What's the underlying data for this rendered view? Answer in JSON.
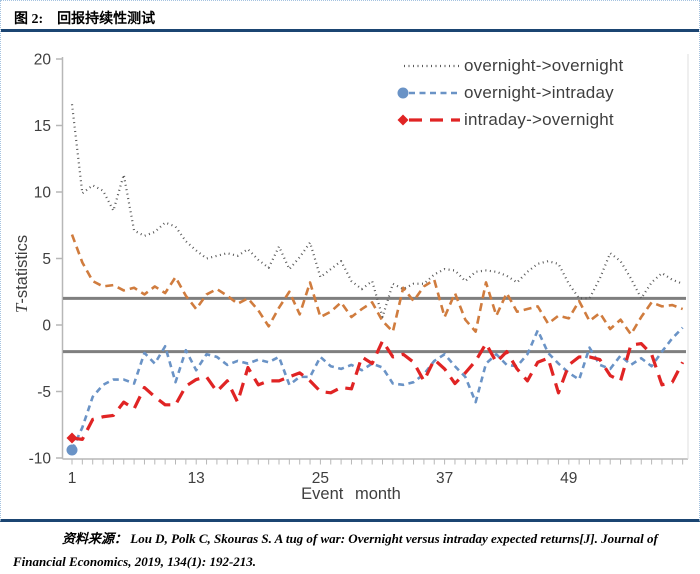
{
  "figure": {
    "tag_label": "图 2:",
    "title": "回报持续性测试"
  },
  "source_note": {
    "label": "资料来源：",
    "text": "Lou D, Polk C, Skouras S. A tug of war: Overnight versus intraday expected returns[J]. Journal of Financial Economics, 2019, 134(1): 192-213."
  },
  "chart_data": {
    "type": "line",
    "title": "",
    "xlabel": "Event month",
    "ylabel": "T-statistics",
    "ylabel_parts": {
      "italic": "T",
      "rest": "-statistics"
    },
    "xlim": [
      1,
      60
    ],
    "ylim": [
      -10,
      20
    ],
    "x_ticks": [
      1,
      13,
      25,
      37,
      49
    ],
    "y_ticks": [
      20,
      15,
      10,
      5,
      0,
      -5,
      -10
    ],
    "reference_lines": [
      2,
      -2
    ],
    "reference_line_color": "#7f7f7f",
    "axis_color": "#b7b7b7",
    "grid": false,
    "legend_position": "top-right-inside",
    "x": [
      1,
      2,
      3,
      4,
      5,
      6,
      7,
      8,
      9,
      10,
      11,
      12,
      13,
      14,
      15,
      16,
      17,
      18,
      19,
      20,
      21,
      22,
      23,
      24,
      25,
      26,
      27,
      28,
      29,
      30,
      31,
      32,
      33,
      34,
      35,
      36,
      37,
      38,
      39,
      40,
      41,
      42,
      43,
      44,
      45,
      46,
      47,
      48,
      49,
      50,
      51,
      52,
      53,
      54,
      55,
      56,
      57,
      58,
      59,
      60
    ],
    "series": [
      {
        "id": "overnight-overnight",
        "label": "overnight->overnight",
        "color": "#595959",
        "line_style": "dotted",
        "marker": null,
        "values": [
          16.6,
          9.9,
          10.5,
          10.1,
          8.6,
          11.3,
          7.1,
          6.7,
          7.0,
          7.7,
          7.4,
          6.3,
          5.6,
          5.0,
          5.2,
          5.4,
          5.2,
          5.7,
          4.9,
          4.3,
          5.9,
          4.2,
          5.1,
          6.2,
          3.6,
          4.2,
          4.8,
          3.3,
          2.7,
          3.3,
          0.6,
          3.1,
          2.7,
          3.1,
          3.1,
          3.8,
          4.2,
          4.1,
          3.3,
          4.0,
          4.1,
          4.0,
          3.7,
          3.2,
          4.0,
          4.6,
          4.8,
          4.6,
          3.1,
          2.0,
          2.0,
          3.5,
          5.4,
          4.8,
          3.5,
          2.0,
          3.2,
          3.9,
          3.4,
          3.1
        ]
      },
      {
        "id": "unlabeled-orange",
        "label": null,
        "color": "#d07c3e",
        "line_style": "dash-medium",
        "marker": null,
        "values": [
          6.8,
          4.7,
          3.3,
          2.9,
          3.0,
          2.6,
          2.8,
          2.3,
          2.9,
          2.4,
          3.6,
          2.2,
          1.2,
          2.3,
          2.7,
          2.2,
          1.6,
          2.0,
          1.1,
          -0.1,
          1.3,
          2.5,
          0.8,
          3.2,
          0.6,
          1.0,
          1.7,
          0.6,
          1.2,
          1.7,
          0.3,
          -0.5,
          2.8,
          1.8,
          2.9,
          3.4,
          0.6,
          2.4,
          0.4,
          -0.5,
          3.2,
          0.7,
          2.4,
          1.0,
          1.2,
          1.4,
          0.1,
          0.7,
          0.5,
          1.8,
          0.3,
          0.9,
          -0.3,
          0.4,
          -0.7,
          0.6,
          1.7,
          1.4,
          1.5,
          1.2
        ]
      },
      {
        "id": "overnight-intraday",
        "label": "overnight->intraday",
        "color": "#6a93c6",
        "line_style": "dash-short",
        "marker": "circle",
        "values": [
          -9.4,
          -7.7,
          -5.4,
          -4.5,
          -4.1,
          -4.1,
          -4.4,
          -2.1,
          -2.9,
          -1.6,
          -4.3,
          -1.9,
          -3.4,
          -2.2,
          -2.4,
          -3.0,
          -2.7,
          -2.9,
          -2.6,
          -2.8,
          -2.4,
          -4.5,
          -3.9,
          -3.9,
          -2.4,
          -3.1,
          -3.3,
          -3.0,
          -3.4,
          -2.9,
          -3.2,
          -4.4,
          -4.5,
          -4.3,
          -3.7,
          -2.7,
          -2.2,
          -3.1,
          -3.9,
          -5.8,
          -2.9,
          -2.2,
          -3.0,
          -3.1,
          -2.2,
          -0.4,
          -2.1,
          -2.9,
          -3.6,
          -4.1,
          -1.7,
          -3.0,
          -3.3,
          -2.3,
          -3.0,
          -2.5,
          -3.1,
          -2.0,
          -1.0,
          -0.2
        ]
      },
      {
        "id": "intraday-overnight",
        "label": "intraday->overnight",
        "color": "#e02424",
        "line_style": "dash-long",
        "marker": "diamond",
        "values": [
          -8.5,
          -8.6,
          -7.1,
          -6.9,
          -6.8,
          -5.8,
          -6.3,
          -4.7,
          -5.4,
          -6.0,
          -6.0,
          -4.6,
          -4.1,
          -3.9,
          -5.0,
          -4.2,
          -5.8,
          -3.2,
          -4.5,
          -4.2,
          -4.2,
          -3.9,
          -3.6,
          -4.2,
          -5.0,
          -5.1,
          -4.7,
          -4.8,
          -2.4,
          -2.9,
          -1.2,
          -2.4,
          -2.2,
          -2.8,
          -4.2,
          -2.6,
          -3.3,
          -4.4,
          -3.6,
          -2.7,
          -1.4,
          -2.8,
          -2.0,
          -3.3,
          -4.2,
          -2.8,
          -2.5,
          -5.1,
          -3.0,
          -2.4,
          -2.4,
          -2.6,
          -3.8,
          -4.2,
          -1.5,
          -1.4,
          -2.2,
          -4.5,
          -4.3,
          -2.8
        ]
      }
    ]
  }
}
